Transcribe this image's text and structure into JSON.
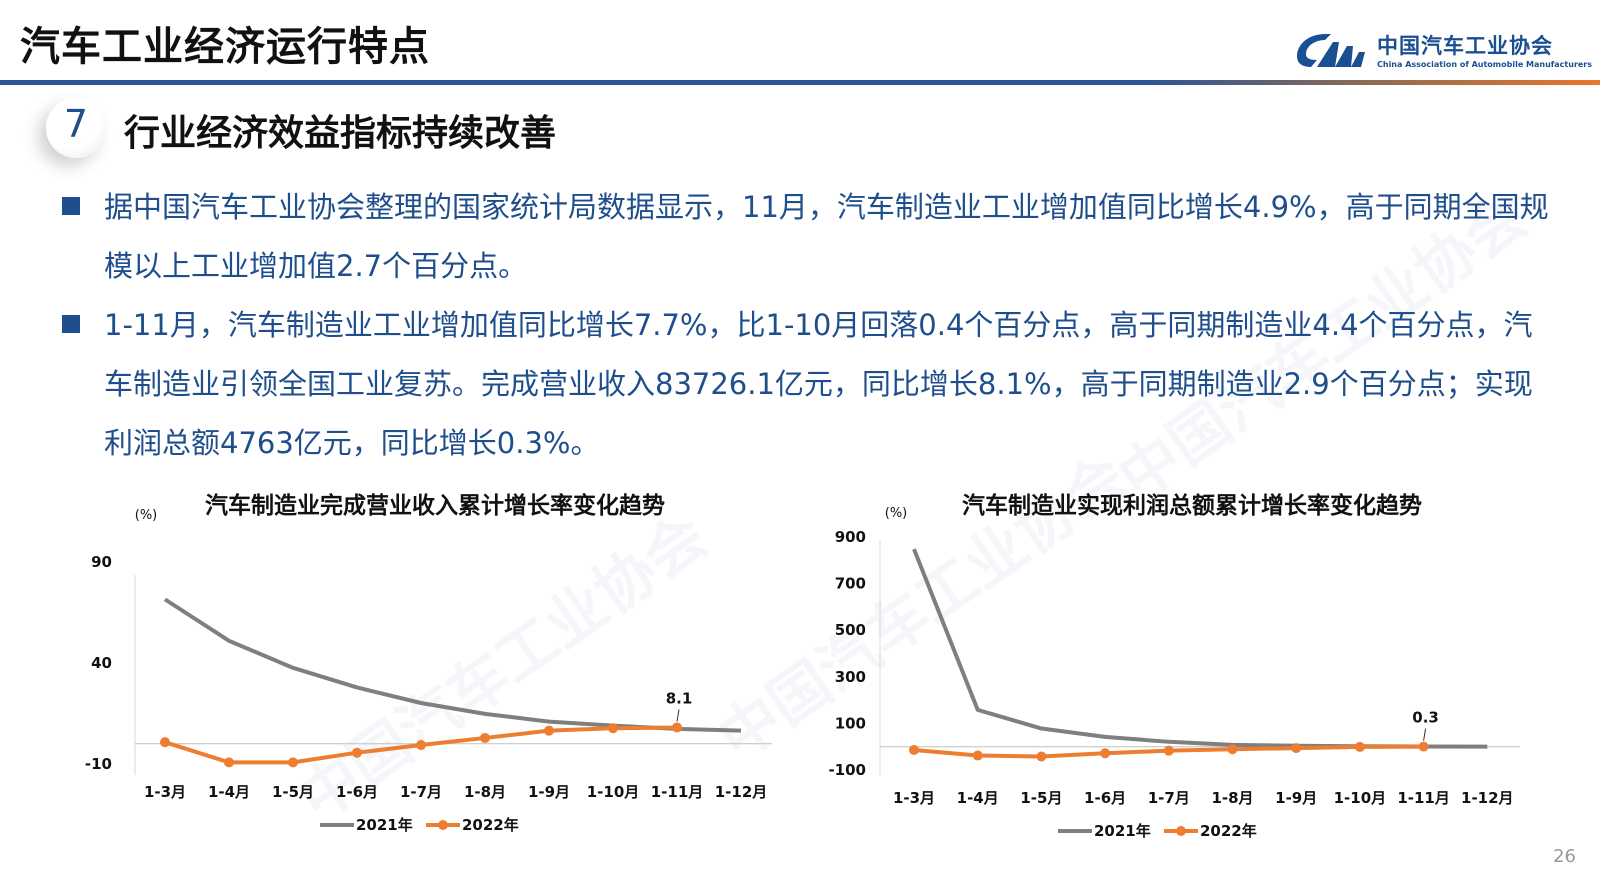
{
  "header": {
    "title": "汽车工业经济运行特点",
    "logo_cn": "中国汽车工业协会",
    "logo_en": "China Association of Automobile Manufacturers"
  },
  "section": {
    "number": "7",
    "title": "行业经济效益指标持续改善"
  },
  "bullets": [
    "据中国汽车工业协会整理的国家统计局数据显示，11月，汽车制造业工业增加值同比增长4.9%，高于同期全国规模以上工业增加值2.7个百分点。",
    "1-11月，汽车制造业工业增加值同比增长7.7%，比1-10月回落0.4个百分点，高于同期制造业4.4个百分点，汽车制造业引领全国工业复苏。完成营业收入83726.1亿元，同比增长8.1%，高于同期制造业2.9个百分点；实现利润总额4763亿元，同比增长0.3%。"
  ],
  "page_number": "26",
  "colors": {
    "series_2021": "#7f7f7f",
    "series_2022": "#ed7d31",
    "text_blue": "#1f4e8c",
    "rule_blue": "#2e5596"
  },
  "chart_data": [
    {
      "type": "line",
      "title": "汽车制造业完成营业收入累计增长率变化趋势",
      "ylabel": "(%)",
      "categories": [
        "1-3月",
        "1-4月",
        "1-5月",
        "1-6月",
        "1-7月",
        "1-8月",
        "1-9月",
        "1-10月",
        "1-11月",
        "1-12月"
      ],
      "yticks": [
        90,
        40,
        -10
      ],
      "ylim": [
        -10,
        90
      ],
      "series": [
        {
          "name": "2021年",
          "values": [
            71.5,
            51,
            37.6,
            27.9,
            20.2,
            14.8,
            11,
            9,
            7.4,
            6.5
          ]
        },
        {
          "name": "2022年",
          "values": [
            0.8,
            -9.2,
            -9.2,
            -4.4,
            -0.6,
            2.9,
            6.5,
            7.7,
            8.1,
            null
          ]
        }
      ],
      "annotation": {
        "category": "1-11月",
        "label": "8.1"
      },
      "legend": "bottom",
      "grid": false
    },
    {
      "type": "line",
      "title": "汽车制造业实现利润总额累计增长率变化趋势",
      "ylabel": "(%)",
      "categories": [
        "1-3月",
        "1-4月",
        "1-5月",
        "1-6月",
        "1-7月",
        "1-8月",
        "1-9月",
        "1-10月",
        "1-11月",
        "1-12月"
      ],
      "yticks": [
        900,
        700,
        500,
        300,
        100,
        -100
      ],
      "ylim": [
        -100,
        900
      ],
      "series": [
        {
          "name": "2021年",
          "values": [
            848,
            158,
            78,
            42,
            21,
            8,
            4,
            2,
            1,
            0.5
          ]
        },
        {
          "name": "2022年",
          "values": [
            -14,
            -38,
            -42,
            -28,
            -17,
            -11,
            -6,
            -1,
            0.3,
            null
          ]
        }
      ],
      "annotation": {
        "category": "1-11月",
        "label": "0.3"
      },
      "legend": "bottom",
      "grid": false
    }
  ]
}
